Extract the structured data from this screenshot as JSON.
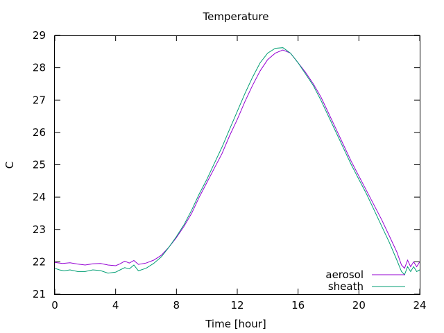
{
  "chart_data": {
    "type": "line",
    "title": "Temperature",
    "xlabel": "Time [hour]",
    "ylabel": "C",
    "xlim": [
      0,
      24
    ],
    "ylim": [
      21,
      29
    ],
    "xticks": [
      0,
      4,
      8,
      12,
      16,
      20,
      24
    ],
    "yticks": [
      21,
      22,
      23,
      24,
      25,
      26,
      27,
      28,
      29
    ],
    "grid": false,
    "legend_position": "bottom-right",
    "series": [
      {
        "name": "aerosol",
        "color": "#9400d3",
        "points": [
          [
            0,
            21.98
          ],
          [
            0.5,
            21.95
          ],
          [
            1,
            21.97
          ],
          [
            1.5,
            21.93
          ],
          [
            2,
            21.9
          ],
          [
            2.5,
            21.94
          ],
          [
            3,
            21.95
          ],
          [
            3.5,
            21.9
          ],
          [
            4,
            21.88
          ],
          [
            4.3,
            21.94
          ],
          [
            4.6,
            22.02
          ],
          [
            4.9,
            21.96
          ],
          [
            5.2,
            22.04
          ],
          [
            5.5,
            21.92
          ],
          [
            6,
            21.96
          ],
          [
            6.5,
            22.05
          ],
          [
            7,
            22.2
          ],
          [
            7.5,
            22.45
          ],
          [
            8,
            22.75
          ],
          [
            8.5,
            23.1
          ],
          [
            9,
            23.5
          ],
          [
            9.5,
            24.0
          ],
          [
            10,
            24.45
          ],
          [
            10.5,
            24.9
          ],
          [
            11,
            25.35
          ],
          [
            11.5,
            25.9
          ],
          [
            12,
            26.4
          ],
          [
            12.5,
            26.95
          ],
          [
            13,
            27.45
          ],
          [
            13.5,
            27.9
          ],
          [
            14,
            28.25
          ],
          [
            14.5,
            28.45
          ],
          [
            15,
            28.55
          ],
          [
            15.5,
            28.45
          ],
          [
            16,
            28.15
          ],
          [
            16.5,
            27.85
          ],
          [
            17,
            27.5
          ],
          [
            17.5,
            27.1
          ],
          [
            18,
            26.6
          ],
          [
            18.5,
            26.1
          ],
          [
            19,
            25.6
          ],
          [
            19.5,
            25.1
          ],
          [
            20,
            24.65
          ],
          [
            20.5,
            24.2
          ],
          [
            21,
            23.75
          ],
          [
            21.5,
            23.3
          ],
          [
            22,
            22.8
          ],
          [
            22.5,
            22.3
          ],
          [
            22.8,
            21.9
          ],
          [
            23.0,
            21.8
          ],
          [
            23.2,
            22.05
          ],
          [
            23.4,
            21.85
          ],
          [
            23.6,
            22.0
          ],
          [
            23.8,
            21.85
          ],
          [
            24,
            22.0
          ]
        ]
      },
      {
        "name": "sheath",
        "color": "#009e73",
        "points": [
          [
            0,
            21.8
          ],
          [
            0.3,
            21.75
          ],
          [
            0.6,
            21.72
          ],
          [
            1,
            21.75
          ],
          [
            1.5,
            21.7
          ],
          [
            2,
            21.7
          ],
          [
            2.5,
            21.75
          ],
          [
            3,
            21.73
          ],
          [
            3.5,
            21.65
          ],
          [
            4,
            21.68
          ],
          [
            4.3,
            21.75
          ],
          [
            4.6,
            21.82
          ],
          [
            4.9,
            21.78
          ],
          [
            5.2,
            21.9
          ],
          [
            5.5,
            21.72
          ],
          [
            6,
            21.8
          ],
          [
            6.5,
            21.95
          ],
          [
            7,
            22.15
          ],
          [
            7.5,
            22.45
          ],
          [
            8,
            22.78
          ],
          [
            8.5,
            23.15
          ],
          [
            9,
            23.6
          ],
          [
            9.5,
            24.1
          ],
          [
            10,
            24.55
          ],
          [
            10.5,
            25.05
          ],
          [
            11,
            25.55
          ],
          [
            11.5,
            26.1
          ],
          [
            12,
            26.65
          ],
          [
            12.5,
            27.2
          ],
          [
            13,
            27.7
          ],
          [
            13.5,
            28.15
          ],
          [
            14,
            28.45
          ],
          [
            14.5,
            28.6
          ],
          [
            15,
            28.62
          ],
          [
            15.5,
            28.45
          ],
          [
            16,
            28.15
          ],
          [
            16.5,
            27.8
          ],
          [
            17,
            27.45
          ],
          [
            17.5,
            27.0
          ],
          [
            18,
            26.5
          ],
          [
            18.5,
            26.0
          ],
          [
            19,
            25.5
          ],
          [
            19.5,
            25.0
          ],
          [
            20,
            24.55
          ],
          [
            20.5,
            24.1
          ],
          [
            21,
            23.6
          ],
          [
            21.5,
            23.1
          ],
          [
            22,
            22.6
          ],
          [
            22.5,
            22.05
          ],
          [
            22.8,
            21.7
          ],
          [
            23.0,
            21.6
          ],
          [
            23.2,
            21.85
          ],
          [
            23.4,
            21.7
          ],
          [
            23.6,
            21.85
          ],
          [
            23.8,
            21.7
          ],
          [
            24,
            21.75
          ]
        ]
      }
    ]
  }
}
